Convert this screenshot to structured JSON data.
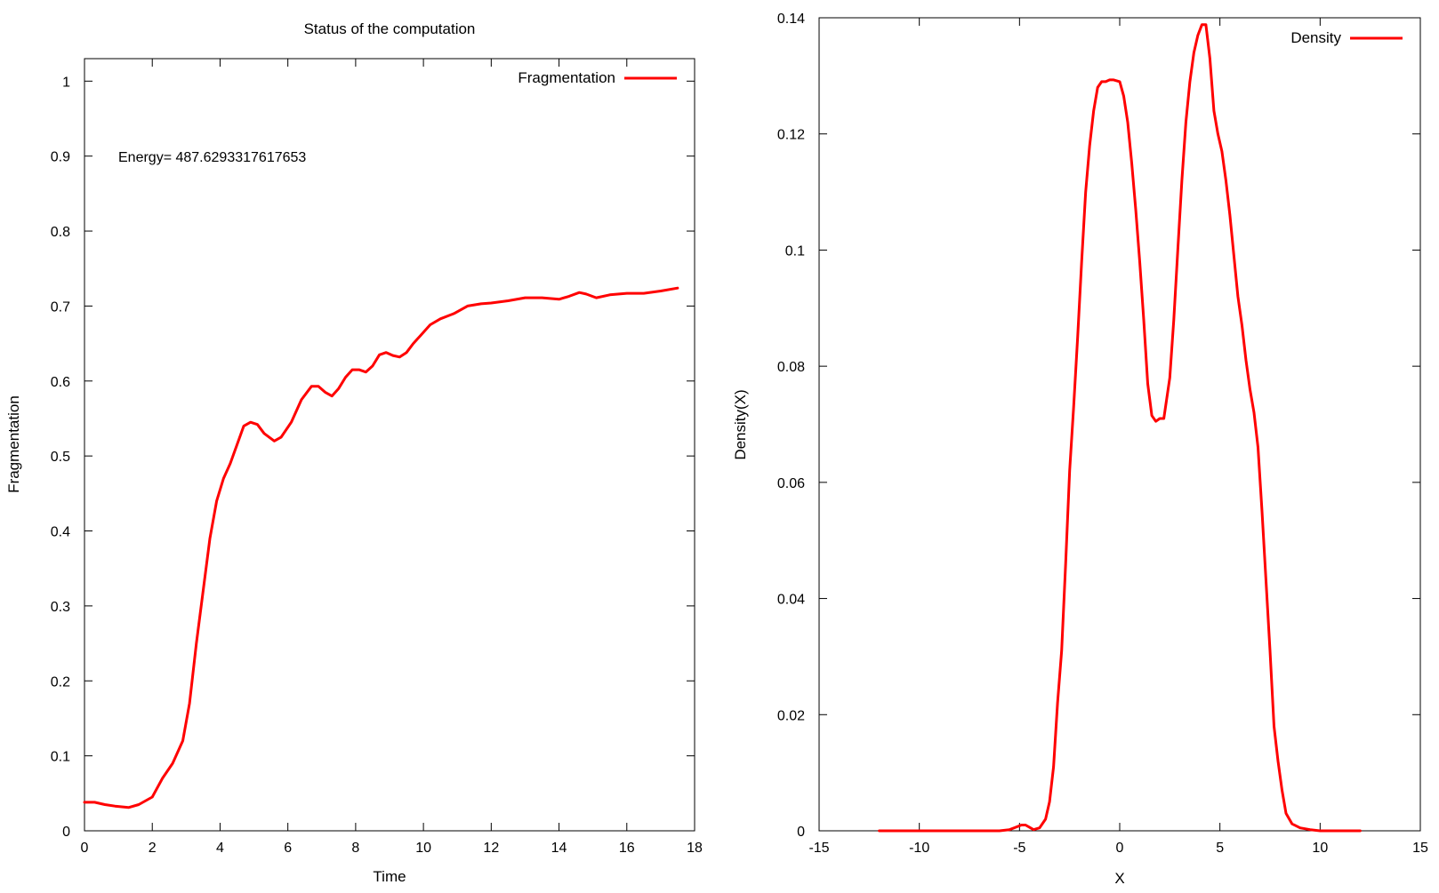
{
  "chart_data": [
    {
      "type": "line",
      "title": "Status of the computation",
      "xlabel": "Time",
      "ylabel": "Fragmentation",
      "xlim": [
        0,
        18
      ],
      "ylim": [
        0,
        1.03
      ],
      "xticks": [
        0,
        2,
        4,
        6,
        8,
        10,
        12,
        14,
        16,
        18
      ],
      "yticks": [
        0,
        0.1,
        0.2,
        0.3,
        0.4,
        0.5,
        0.6,
        0.7,
        0.8,
        0.9,
        1
      ],
      "legend_position": "top-right",
      "grid": false,
      "annotation": "Energy= 487.6293317617653",
      "series": [
        {
          "name": "Fragmentation",
          "color": "#ff0000",
          "x": [
            0,
            0.3,
            0.6,
            0.9,
            1.3,
            1.6,
            2.0,
            2.3,
            2.6,
            2.9,
            3.1,
            3.3,
            3.5,
            3.7,
            3.9,
            4.1,
            4.3,
            4.5,
            4.7,
            4.9,
            5.1,
            5.3,
            5.6,
            5.8,
            6.1,
            6.4,
            6.7,
            6.9,
            7.1,
            7.3,
            7.5,
            7.7,
            7.9,
            8.1,
            8.3,
            8.5,
            8.7,
            8.9,
            9.1,
            9.3,
            9.5,
            9.7,
            9.9,
            10.2,
            10.5,
            10.9,
            11.3,
            11.7,
            12.0,
            12.5,
            13.0,
            13.5,
            14.0,
            14.3,
            14.6,
            14.8,
            15.1,
            15.5,
            16.0,
            16.5,
            17.0,
            17.5
          ],
          "y": [
            0.038,
            0.038,
            0.035,
            0.033,
            0.031,
            0.035,
            0.045,
            0.07,
            0.09,
            0.12,
            0.17,
            0.25,
            0.32,
            0.39,
            0.44,
            0.47,
            0.49,
            0.515,
            0.54,
            0.545,
            0.542,
            0.53,
            0.52,
            0.525,
            0.545,
            0.575,
            0.593,
            0.593,
            0.585,
            0.58,
            0.59,
            0.605,
            0.615,
            0.615,
            0.612,
            0.62,
            0.635,
            0.638,
            0.634,
            0.632,
            0.638,
            0.65,
            0.66,
            0.675,
            0.683,
            0.69,
            0.7,
            0.703,
            0.704,
            0.707,
            0.711,
            0.711,
            0.709,
            0.713,
            0.718,
            0.716,
            0.711,
            0.715,
            0.717,
            0.717,
            0.72,
            0.724
          ]
        }
      ]
    },
    {
      "type": "line",
      "title": "",
      "xlabel": "X",
      "ylabel": "Density(X)",
      "xlim": [
        -15,
        15
      ],
      "ylim": [
        0,
        0.14
      ],
      "xticks": [
        -15,
        -10,
        -5,
        0,
        5,
        10,
        15
      ],
      "yticks": [
        0,
        0.02,
        0.04,
        0.06,
        0.08,
        0.1,
        0.12,
        0.14
      ],
      "legend_position": "top-right",
      "grid": false,
      "series": [
        {
          "name": "Density",
          "color": "#ff0000",
          "x": [
            -12,
            -6,
            -5.5,
            -5.2,
            -4.9,
            -4.7,
            -4.5,
            -4.3,
            -4.0,
            -3.7,
            -3.5,
            -3.3,
            -3.1,
            -2.9,
            -2.7,
            -2.5,
            -2.3,
            -2.1,
            -1.9,
            -1.7,
            -1.5,
            -1.3,
            -1.1,
            -0.9,
            -0.7,
            -0.5,
            -0.3,
            0,
            0.2,
            0.4,
            0.6,
            0.8,
            1.0,
            1.2,
            1.4,
            1.6,
            1.8,
            2.0,
            2.2,
            2.5,
            2.7,
            2.9,
            3.1,
            3.3,
            3.5,
            3.7,
            3.9,
            4.1,
            4.3,
            4.5,
            4.7,
            4.9,
            5.1,
            5.3,
            5.5,
            5.7,
            5.9,
            6.1,
            6.3,
            6.5,
            6.7,
            6.9,
            7.1,
            7.3,
            7.5,
            7.7,
            7.9,
            8.1,
            8.3,
            8.6,
            9.0,
            9.5,
            10.0,
            11.0,
            12.0
          ],
          "y": [
            0,
            0,
            0.0002,
            0.0006,
            0.001,
            0.001,
            0.0006,
            0.0002,
            0.0005,
            0.002,
            0.005,
            0.011,
            0.022,
            0.031,
            0.046,
            0.062,
            0.073,
            0.085,
            0.098,
            0.11,
            0.118,
            0.124,
            0.128,
            0.129,
            0.129,
            0.1293,
            0.1293,
            0.129,
            0.1265,
            0.122,
            0.115,
            0.107,
            0.098,
            0.088,
            0.077,
            0.0715,
            0.0705,
            0.071,
            0.071,
            0.078,
            0.088,
            0.1,
            0.112,
            0.122,
            0.129,
            0.134,
            0.137,
            0.1388,
            0.1388,
            0.133,
            0.124,
            0.12,
            0.117,
            0.112,
            0.106,
            0.099,
            0.092,
            0.087,
            0.081,
            0.076,
            0.072,
            0.066,
            0.055,
            0.043,
            0.031,
            0.018,
            0.012,
            0.007,
            0.003,
            0.0012,
            0.0005,
            0.0002,
            0,
            0,
            0
          ]
        }
      ]
    }
  ]
}
